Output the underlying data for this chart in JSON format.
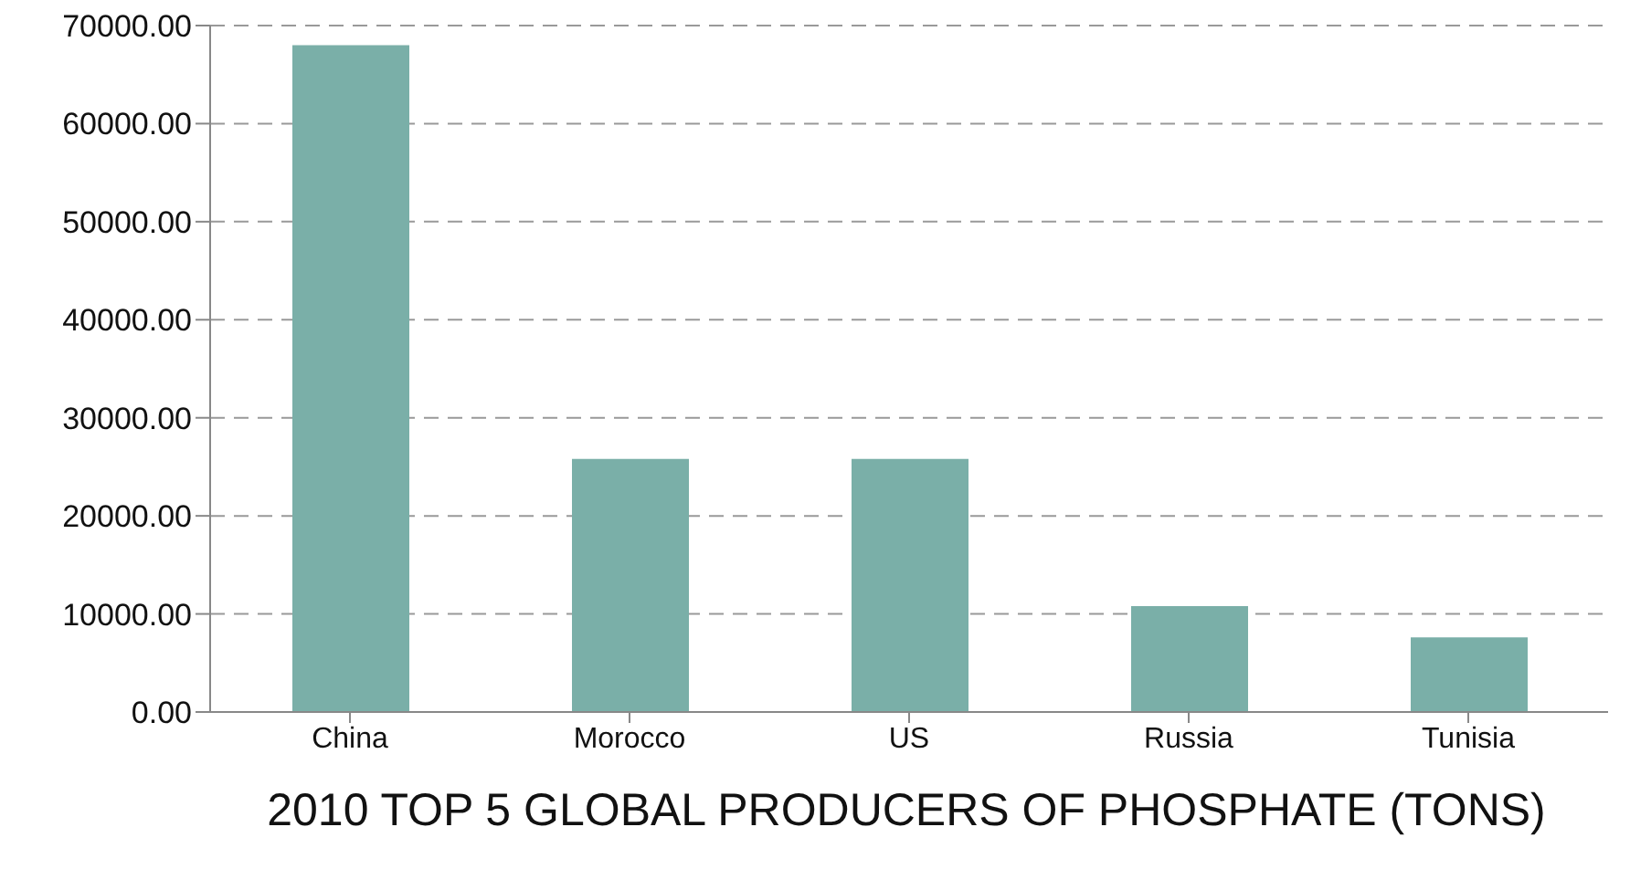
{
  "chart_data": {
    "type": "bar",
    "title": "2010 TOP 5 GLOBAL PRODUCERS OF PHOSPHATE (TONS)",
    "categories": [
      "China",
      "Morocco",
      "US",
      "Russia",
      "Tunisia"
    ],
    "values": [
      68000,
      25800,
      25800,
      10800,
      7600
    ],
    "color": "#7aafa8",
    "ylim": [
      0,
      70000
    ],
    "yticks": [
      {
        "value": 0,
        "label": "0.00"
      },
      {
        "value": 10000,
        "label": "10000.00"
      },
      {
        "value": 20000,
        "label": "20000.00"
      },
      {
        "value": 30000,
        "label": "30000.00"
      },
      {
        "value": 40000,
        "label": "40000.00"
      },
      {
        "value": 50000,
        "label": "50000.00"
      },
      {
        "value": 60000,
        "label": "60000.00"
      },
      {
        "value": 70000,
        "label": "70000.00"
      }
    ],
    "grid": "y"
  }
}
